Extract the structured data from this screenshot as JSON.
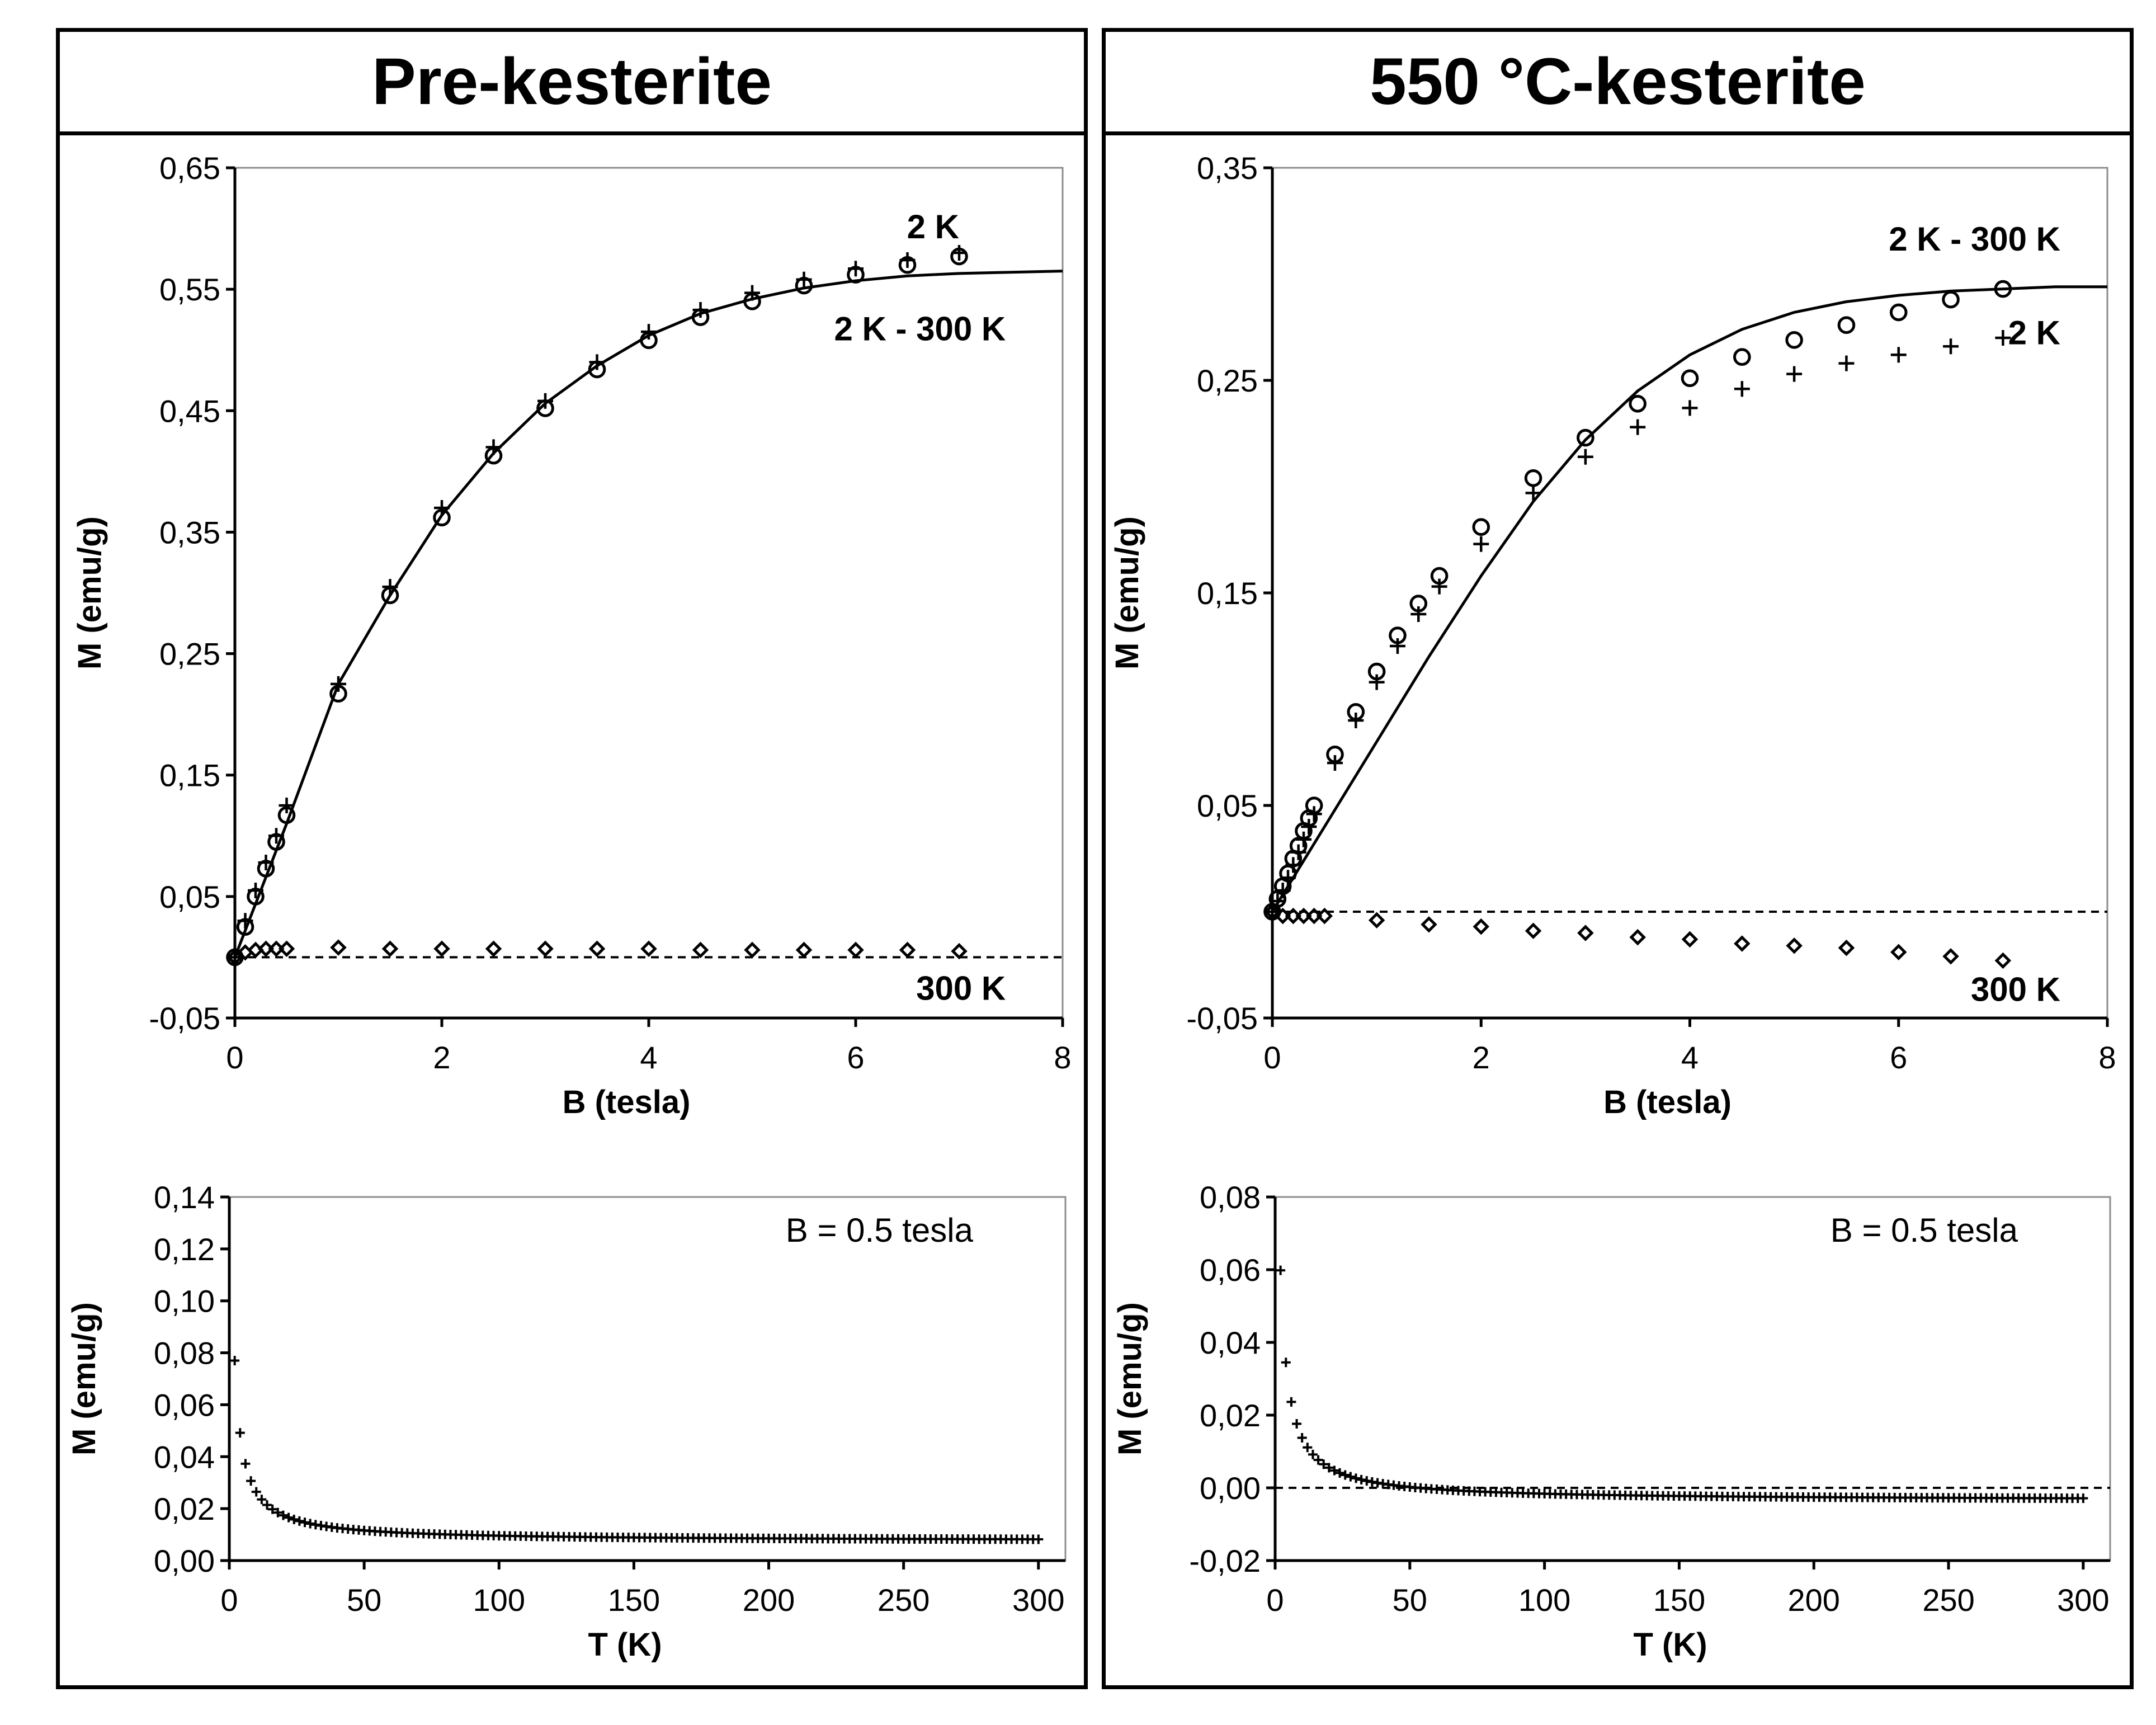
{
  "panels": [
    {
      "title": "Pre-kesterite"
    },
    {
      "title": "550 °C-kesterite"
    }
  ],
  "colors": {
    "ink": "#000000",
    "background": "#ffffff"
  },
  "chart_data": [
    {
      "id": "pre-mb",
      "type": "scatter",
      "xlabel": "B (tesla)",
      "ylabel": "M (emu/g)",
      "xlim": [
        0,
        8
      ],
      "ylim": [
        -0.05,
        0.65
      ],
      "xticks": [
        0,
        2,
        4,
        6,
        8
      ],
      "xtick_labels": [
        "0",
        "2",
        "4",
        "6",
        "8"
      ],
      "yticks": [
        -0.05,
        0.05,
        0.15,
        0.25,
        0.35,
        0.45,
        0.55,
        0.65
      ],
      "ytick_labels": [
        "-0,05",
        "0,05",
        "0,15",
        "0,25",
        "0,35",
        "0,45",
        "0,55",
        "0,65"
      ],
      "series": [
        {
          "name": "2 K",
          "marker": "plus",
          "x": [
            0,
            0.1,
            0.2,
            0.3,
            0.4,
            0.5,
            1,
            1.5,
            2,
            2.5,
            3,
            3.5,
            4,
            4.5,
            5,
            5.5,
            6,
            6.5,
            7
          ],
          "y": [
            0,
            0.03,
            0.055,
            0.078,
            0.1,
            0.125,
            0.225,
            0.305,
            0.37,
            0.42,
            0.458,
            0.49,
            0.515,
            0.533,
            0.547,
            0.558,
            0.567,
            0.574,
            0.58
          ]
        },
        {
          "name": "2 K - 300 K",
          "marker": "circle",
          "x": [
            0,
            0.1,
            0.2,
            0.3,
            0.4,
            0.5,
            1,
            1.5,
            2,
            2.5,
            3,
            3.5,
            4,
            4.5,
            5,
            5.5,
            6,
            6.5,
            7
          ],
          "y": [
            0,
            0.025,
            0.05,
            0.073,
            0.095,
            0.117,
            0.217,
            0.298,
            0.362,
            0.413,
            0.452,
            0.484,
            0.508,
            0.527,
            0.54,
            0.553,
            0.562,
            0.57,
            0.577
          ]
        },
        {
          "name": "300 K",
          "marker": "diamond",
          "x": [
            0,
            0.1,
            0.2,
            0.3,
            0.4,
            0.5,
            1,
            1.5,
            2,
            2.5,
            3,
            3.5,
            4,
            4.5,
            5,
            5.5,
            6,
            6.5,
            7
          ],
          "y": [
            0,
            0.004,
            0.006,
            0.007,
            0.007,
            0.007,
            0.008,
            0.007,
            0.007,
            0.007,
            0.007,
            0.007,
            0.007,
            0.006,
            0.006,
            0.006,
            0.006,
            0.006,
            0.005
          ]
        },
        {
          "name": "fit",
          "line": "solid",
          "x": [
            0,
            0.5,
            1,
            1.5,
            2,
            2.5,
            3,
            3.5,
            4,
            4.5,
            5,
            5.5,
            6,
            6.5,
            7,
            7.5,
            8
          ],
          "y": [
            0,
            0.11,
            0.225,
            0.298,
            0.364,
            0.415,
            0.456,
            0.487,
            0.512,
            0.53,
            0.542,
            0.551,
            0.557,
            0.561,
            0.563,
            0.564,
            0.565
          ]
        },
        {
          "name": "zero",
          "line": "dashed",
          "x": [
            0,
            8
          ],
          "y": [
            0,
            0
          ]
        }
      ],
      "annotations": [
        {
          "text": "2 K",
          "x": 7.0,
          "y": 0.592
        },
        {
          "text": "2 K - 300 K",
          "x": 7.45,
          "y": 0.508
        },
        {
          "text": "300 K",
          "x": 7.45,
          "y": -0.035
        }
      ]
    },
    {
      "id": "pre-mt",
      "type": "scatter",
      "xlabel": "T (K)",
      "ylabel": "M (emu/g)",
      "xlim": [
        0,
        310
      ],
      "ylim": [
        0,
        0.14
      ],
      "xticks": [
        0,
        50,
        100,
        150,
        200,
        250,
        300
      ],
      "xtick_labels": [
        "0",
        "50",
        "100",
        "150",
        "200",
        "250",
        "300"
      ],
      "yticks": [
        0,
        0.02,
        0.04,
        0.06,
        0.08,
        0.1,
        0.12,
        0.14
      ],
      "ytick_labels": [
        "0,00",
        "0,02",
        "0,04",
        "0,06",
        "0,08",
        "0,10",
        "0,12",
        "0,14"
      ],
      "note": "B = 0.5 tesla",
      "series": [
        {
          "name": "M(T)",
          "marker": "plus",
          "model": "decay",
          "a": 0.0075,
          "b": 0.2085,
          "t0": 1.0,
          "t_start": 2,
          "t_end": 300,
          "step": 2
        }
      ]
    },
    {
      "id": "k550-mb",
      "type": "scatter",
      "xlabel": "B (tesla)",
      "ylabel": "M (emu/g)",
      "xlim": [
        0,
        8
      ],
      "ylim": [
        -0.05,
        0.35
      ],
      "xticks": [
        0,
        2,
        4,
        6,
        8
      ],
      "xtick_labels": [
        "0",
        "2",
        "4",
        "6",
        "8"
      ],
      "yticks": [
        -0.05,
        0.05,
        0.15,
        0.25,
        0.35
      ],
      "ytick_labels": [
        "-0,05",
        "0,05",
        "0,15",
        "0,25",
        "0,35"
      ],
      "series": [
        {
          "name": "2 K",
          "marker": "plus",
          "x": [
            0,
            0.05,
            0.1,
            0.15,
            0.2,
            0.25,
            0.3,
            0.35,
            0.4,
            0.6,
            0.8,
            1,
            1.2,
            1.4,
            1.6,
            2,
            2.5,
            3,
            3.5,
            4,
            4.5,
            5,
            5.5,
            6,
            6.5,
            7
          ],
          "y": [
            0,
            0.005,
            0.01,
            0.016,
            0.022,
            0.028,
            0.034,
            0.04,
            0.046,
            0.07,
            0.09,
            0.108,
            0.125,
            0.14,
            0.153,
            0.173,
            0.197,
            0.214,
            0.228,
            0.237,
            0.246,
            0.253,
            0.258,
            0.262,
            0.266,
            0.27
          ]
        },
        {
          "name": "2 K - 300 K",
          "marker": "circle",
          "x": [
            0,
            0.05,
            0.1,
            0.15,
            0.2,
            0.25,
            0.3,
            0.35,
            0.4,
            0.6,
            0.8,
            1,
            1.2,
            1.4,
            1.6,
            2,
            2.5,
            3,
            3.5,
            4,
            4.5,
            5,
            5.5,
            6,
            6.5,
            7
          ],
          "y": [
            0,
            0.006,
            0.012,
            0.018,
            0.025,
            0.031,
            0.038,
            0.044,
            0.05,
            0.074,
            0.094,
            0.113,
            0.13,
            0.145,
            0.158,
            0.181,
            0.204,
            0.223,
            0.239,
            0.251,
            0.261,
            0.269,
            0.276,
            0.282,
            0.288,
            0.293
          ]
        },
        {
          "name": "300 K",
          "marker": "diamond",
          "x": [
            0,
            0.1,
            0.2,
            0.3,
            0.4,
            0.5,
            1,
            1.5,
            2,
            2.5,
            3,
            3.5,
            4,
            4.5,
            5,
            5.5,
            6,
            6.5,
            7
          ],
          "y": [
            0,
            -0.002,
            -0.002,
            -0.002,
            -0.002,
            -0.002,
            -0.004,
            -0.006,
            -0.007,
            -0.009,
            -0.01,
            -0.012,
            -0.013,
            -0.015,
            -0.016,
            -0.017,
            -0.019,
            -0.021,
            -0.023
          ]
        },
        {
          "name": "fit",
          "line": "solid",
          "x": [
            0,
            0.5,
            1,
            1.5,
            2,
            2.5,
            3,
            3.5,
            4,
            4.5,
            5,
            5.5,
            6,
            6.5,
            7,
            7.5,
            8
          ],
          "y": [
            0,
            0.04,
            0.08,
            0.12,
            0.158,
            0.193,
            0.222,
            0.245,
            0.262,
            0.274,
            0.282,
            0.287,
            0.29,
            0.292,
            0.293,
            0.294,
            0.294
          ]
        },
        {
          "name": "zero",
          "line": "dashed",
          "x": [
            0,
            8
          ],
          "y": [
            0,
            0
          ]
        }
      ],
      "annotations": [
        {
          "text": "2 K - 300 K",
          "x": 7.55,
          "y": 0.311
        },
        {
          "text": "2 K",
          "x": 7.55,
          "y": 0.267
        },
        {
          "text": "300 K",
          "x": 7.55,
          "y": -0.042
        }
      ]
    },
    {
      "id": "k550-mt",
      "type": "scatter",
      "xlabel": "T (K)",
      "ylabel": "M (emu/g)",
      "xlim": [
        0,
        310
      ],
      "ylim": [
        -0.02,
        0.08
      ],
      "xticks": [
        0,
        50,
        100,
        150,
        200,
        250,
        300
      ],
      "xtick_labels": [
        "0",
        "50",
        "100",
        "150",
        "200",
        "250",
        "300"
      ],
      "yticks": [
        -0.02,
        0,
        0.02,
        0.04,
        0.06,
        0.08
      ],
      "ytick_labels": [
        "-0,02",
        "0,00",
        "0,02",
        "0,04",
        "0,06",
        "0,08"
      ],
      "note": "B = 0.5 tesla",
      "series": [
        {
          "name": "M(T)",
          "marker": "plus",
          "model": "decay",
          "a": -0.0035,
          "b": 0.19,
          "t0": 1.0,
          "t_start": 2,
          "t_end": 300,
          "step": 2
        },
        {
          "name": "zero",
          "line": "dashed",
          "x": [
            0,
            310
          ],
          "y": [
            0,
            0
          ]
        }
      ]
    }
  ]
}
